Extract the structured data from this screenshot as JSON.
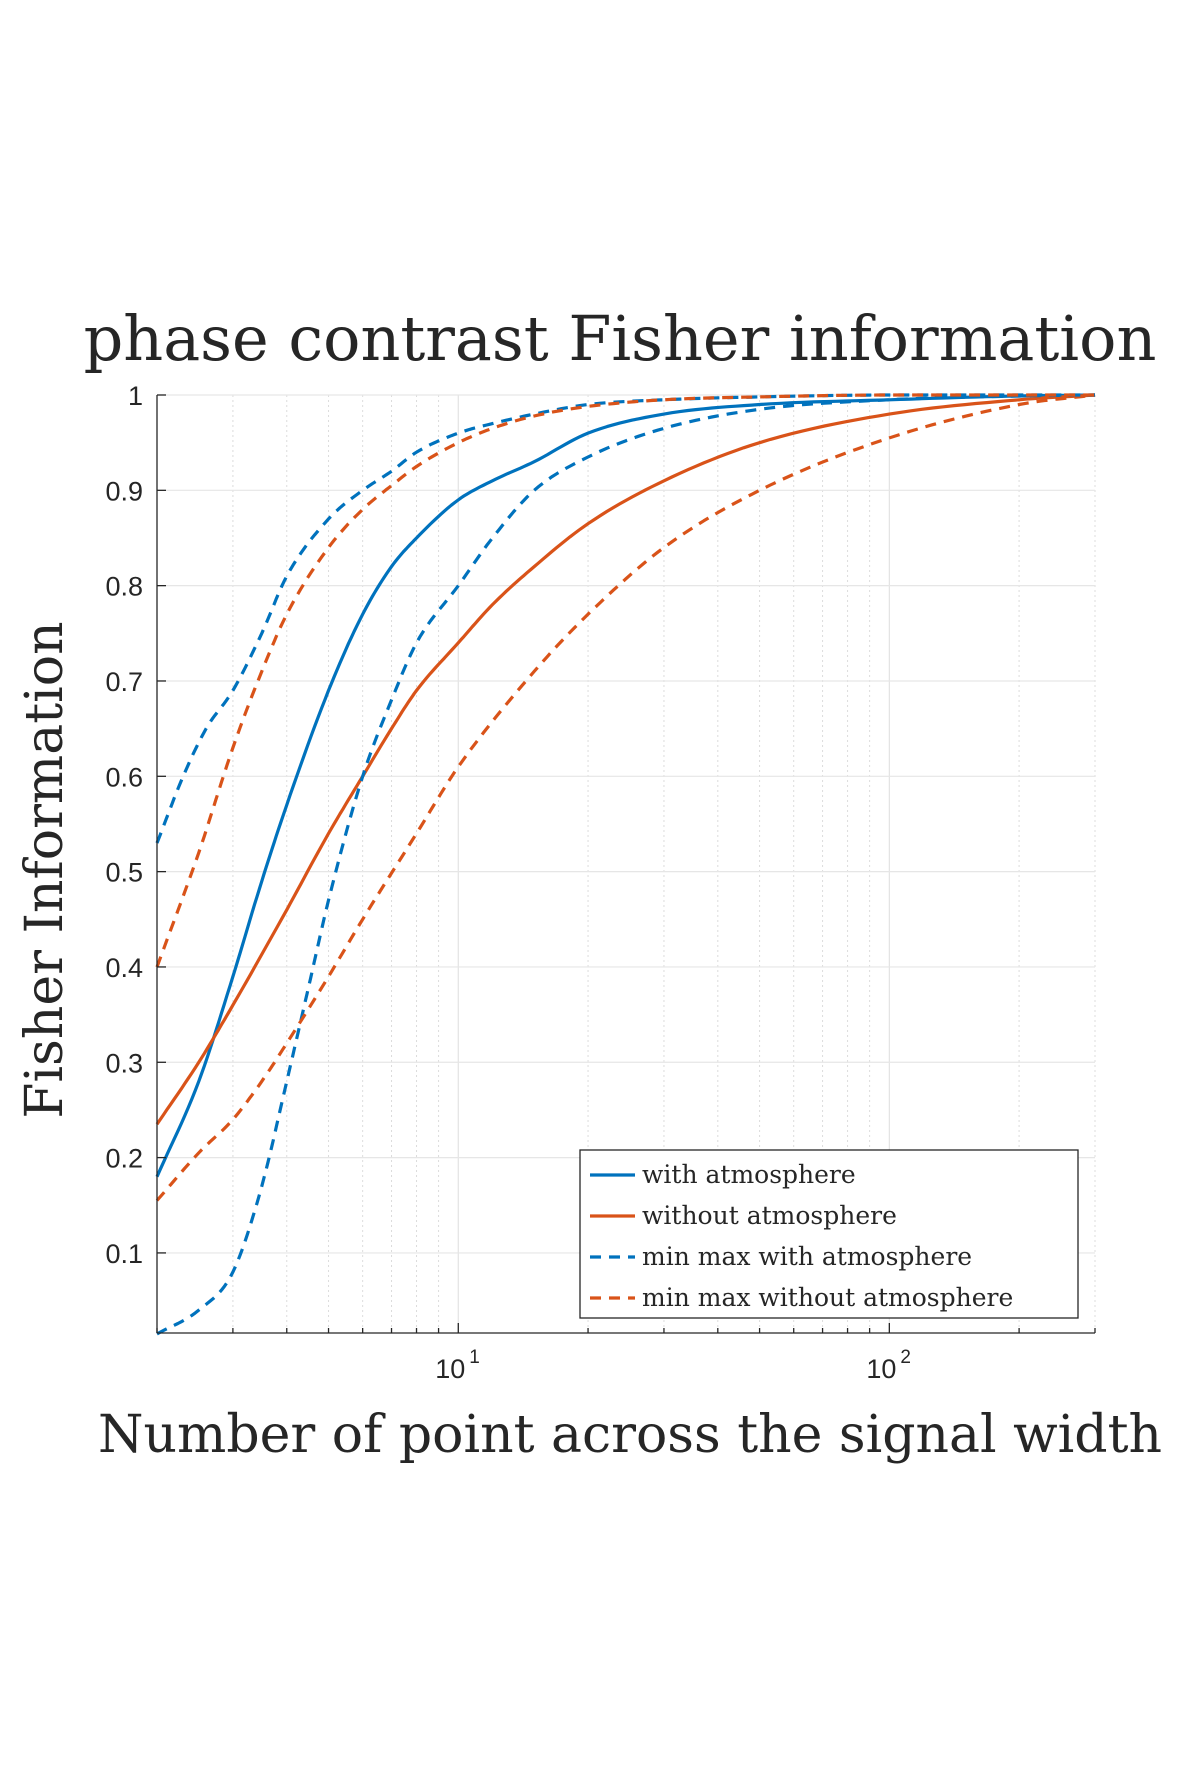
{
  "chart_data": {
    "type": "line",
    "title": "phase contrast Fisher information",
    "xlabel": "Number of point across the signal width",
    "ylabel": "Fisher Information",
    "x_scale": "log",
    "xlim": [
      2,
      300
    ],
    "ylim": [
      0.016,
      1
    ],
    "x_ticks": [
      {
        "base": "10",
        "exp": "1",
        "value": 10
      },
      {
        "base": "10",
        "exp": "2",
        "value": 100
      }
    ],
    "y_ticks": [
      "0.1",
      "0.2",
      "0.3",
      "0.4",
      "0.5",
      "0.6",
      "0.7",
      "0.8",
      "0.9",
      "1"
    ],
    "y_tick_values": [
      0.1,
      0.2,
      0.3,
      0.4,
      0.5,
      0.6,
      0.7,
      0.8,
      0.9,
      1.0
    ],
    "grid": true,
    "legend_position": "bottom-right",
    "series": [
      {
        "name": "with atmosphere",
        "color": "#0072BD",
        "dash": "solid",
        "x": [
          2,
          2.5,
          3,
          3.5,
          4,
          5,
          6,
          7,
          8,
          10,
          12,
          15,
          20,
          30,
          50,
          100,
          200,
          300
        ],
        "y": [
          0.18,
          0.28,
          0.39,
          0.49,
          0.57,
          0.69,
          0.77,
          0.82,
          0.85,
          0.89,
          0.91,
          0.93,
          0.96,
          0.98,
          0.99,
          0.995,
          0.999,
          1.0
        ]
      },
      {
        "name": "without atmosphere",
        "color": "#D95319",
        "dash": "solid",
        "x": [
          2,
          2.5,
          3,
          4,
          5,
          6,
          7,
          8,
          10,
          12,
          15,
          20,
          30,
          50,
          100,
          200,
          300
        ],
        "y": [
          0.235,
          0.3,
          0.36,
          0.46,
          0.54,
          0.6,
          0.65,
          0.69,
          0.74,
          0.78,
          0.82,
          0.865,
          0.91,
          0.95,
          0.98,
          0.995,
          1.0
        ]
      },
      {
        "name": "min max with atmosphere",
        "color": "#0072BD",
        "dash": "dashed",
        "x": [
          2,
          2.5,
          3,
          3.5,
          4,
          4.5,
          5,
          6,
          7,
          8,
          10,
          12,
          15,
          20,
          30,
          50,
          100,
          200,
          300
        ],
        "y": [
          0.015,
          0.04,
          0.08,
          0.17,
          0.28,
          0.38,
          0.47,
          0.6,
          0.68,
          0.74,
          0.8,
          0.85,
          0.9,
          0.935,
          0.965,
          0.985,
          0.995,
          0.999,
          1.0
        ]
      },
      {
        "name": "min max without atmosphere",
        "color": "#D95319",
        "dash": "dashed",
        "x": [
          2,
          2.5,
          3,
          3.5,
          4,
          5,
          6,
          8,
          10,
          15,
          20,
          30,
          50,
          100,
          200,
          300
        ],
        "y": [
          0.155,
          0.205,
          0.24,
          0.28,
          0.32,
          0.39,
          0.45,
          0.54,
          0.61,
          0.71,
          0.77,
          0.84,
          0.9,
          0.955,
          0.99,
          1.0
        ]
      },
      {
        "name": "",
        "color": "#0072BD",
        "dash": "dashed",
        "x": [
          2,
          2.3,
          2.6,
          3,
          3.5,
          4,
          5,
          6,
          7,
          8,
          10,
          12,
          15,
          20,
          30,
          50,
          100,
          300
        ],
        "y": [
          0.53,
          0.6,
          0.65,
          0.69,
          0.75,
          0.81,
          0.87,
          0.9,
          0.92,
          0.94,
          0.96,
          0.97,
          0.98,
          0.99,
          0.995,
          0.998,
          1.0,
          1.0
        ]
      },
      {
        "name": "",
        "color": "#D95319",
        "dash": "dashed",
        "x": [
          2,
          2.5,
          3,
          3.5,
          4,
          5,
          6,
          7,
          8,
          10,
          12,
          15,
          20,
          30,
          50,
          100,
          300
        ],
        "y": [
          0.4,
          0.52,
          0.63,
          0.71,
          0.77,
          0.84,
          0.88,
          0.905,
          0.925,
          0.95,
          0.965,
          0.978,
          0.988,
          0.995,
          0.998,
          1.0,
          1.0
        ]
      }
    ]
  }
}
